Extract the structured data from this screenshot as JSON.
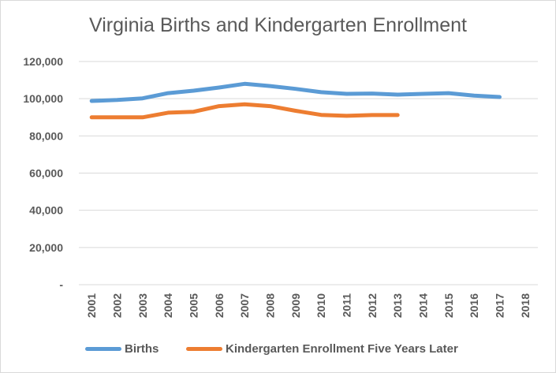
{
  "chart_data": {
    "type": "line",
    "title": "Virginia Births and Kindergarten Enrollment",
    "xlabel": "",
    "ylabel": "",
    "x": [
      "2001",
      "2002",
      "2003",
      "2004",
      "2005",
      "2006",
      "2007",
      "2008",
      "2009",
      "2010",
      "2011",
      "2012",
      "2013",
      "2014",
      "2015",
      "2016",
      "2017",
      "2018"
    ],
    "y_ticks": [
      "-",
      "20,000",
      "40,000",
      "60,000",
      "80,000",
      "100,000",
      "120,000"
    ],
    "ylim": [
      0,
      120000
    ],
    "grid": true,
    "legend": "bottom",
    "series": [
      {
        "name": "Births",
        "color": "#5b9bd5",
        "values": [
          98800,
          99300,
          100200,
          103000,
          104300,
          106000,
          108000,
          106800,
          105300,
          103500,
          102600,
          102800,
          102200,
          102600,
          103000,
          101700,
          100900,
          null
        ]
      },
      {
        "name": "Kindergarten Enrollment Five Years Later",
        "color": "#ed7d31",
        "values": [
          90000,
          90000,
          90000,
          92500,
          93000,
          96000,
          97000,
          96000,
          93500,
          91300,
          90800,
          91200,
          91200,
          null,
          null,
          null,
          null,
          null
        ]
      }
    ]
  }
}
